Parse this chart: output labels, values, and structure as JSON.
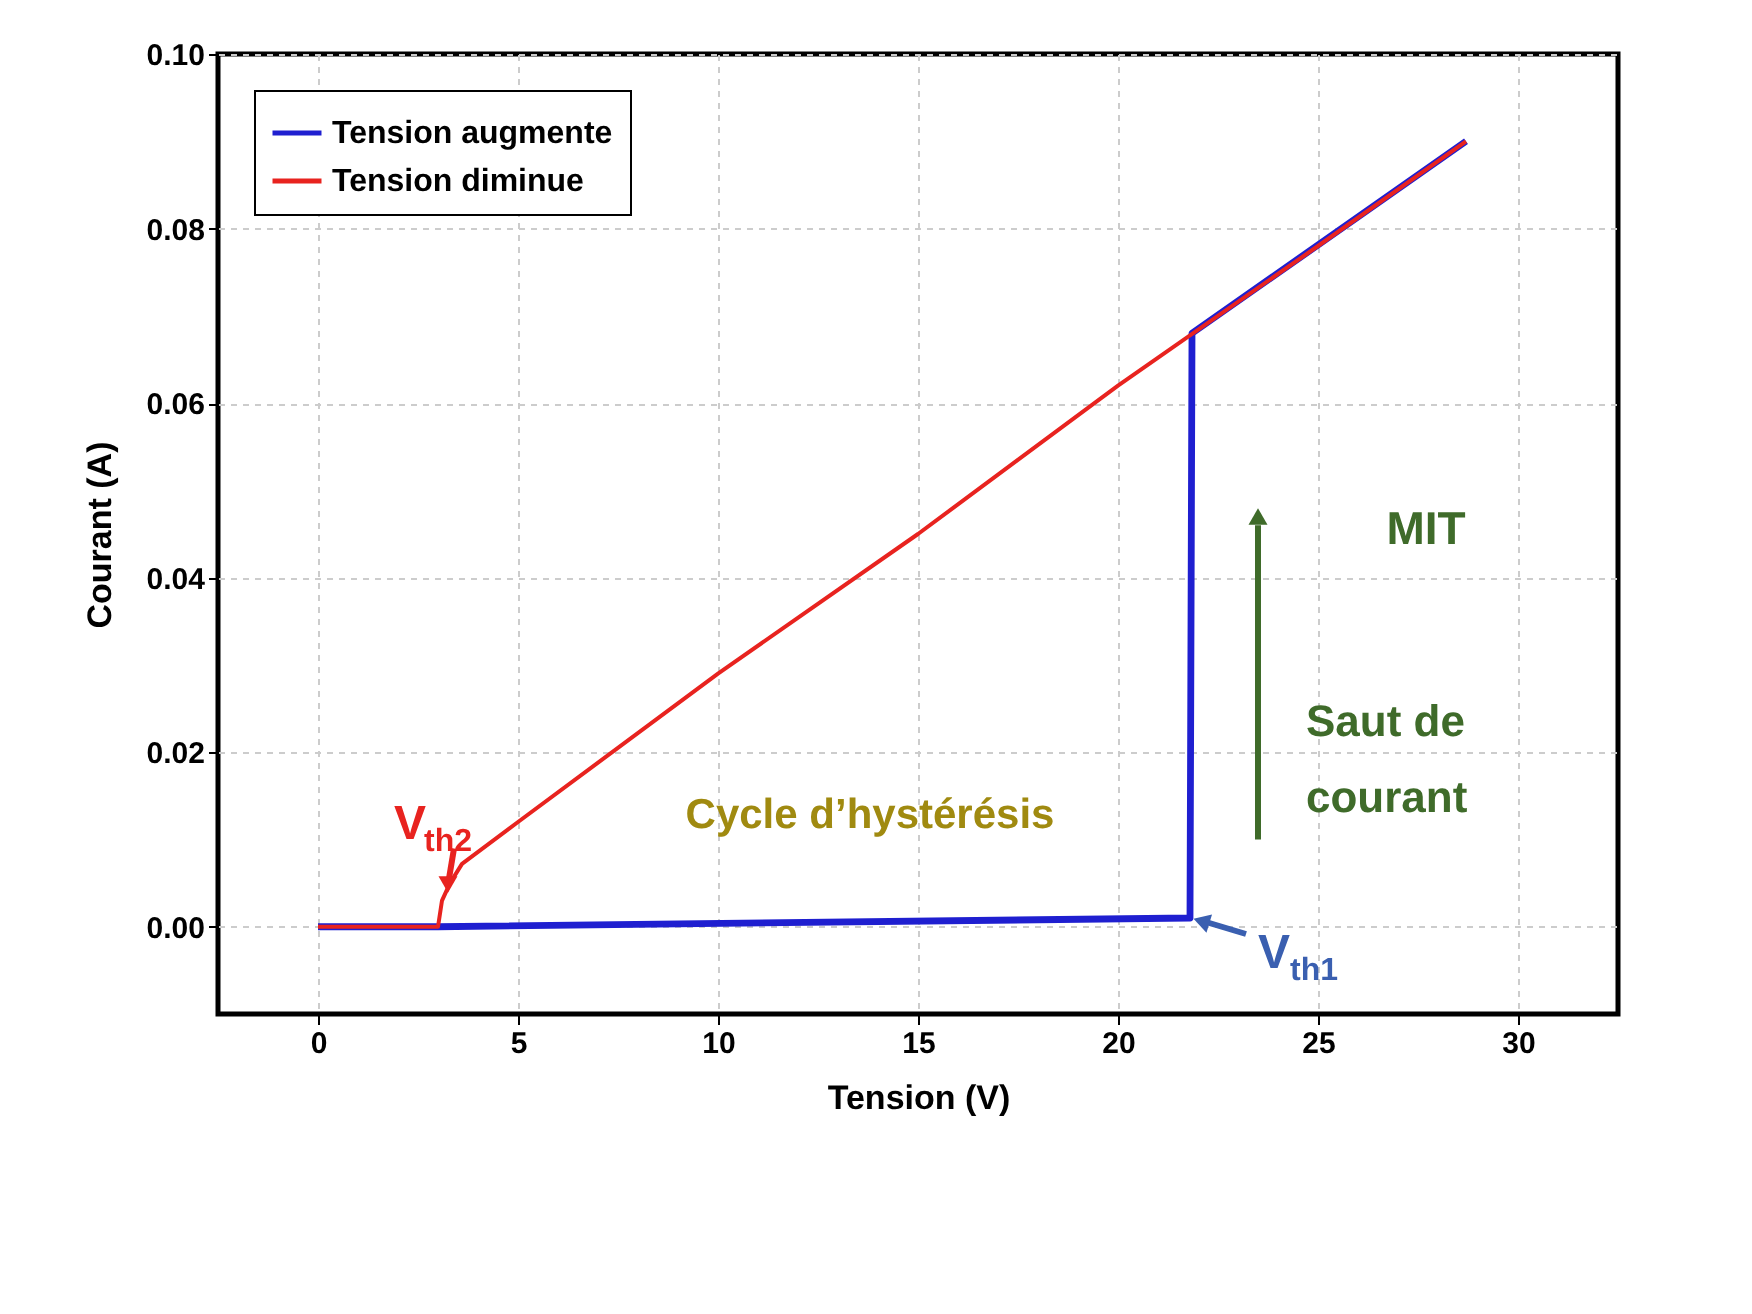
{
  "chart_data": {
    "type": "line",
    "xlabel": "Tension (V)",
    "ylabel": "Courant (A)",
    "xlim": [
      -2.5,
      32.5
    ],
    "ylim": [
      -0.01,
      0.1
    ],
    "xticks": [
      0,
      5,
      10,
      15,
      20,
      25,
      30
    ],
    "yticks": [
      {
        "value": 0,
        "label": "0.00"
      },
      {
        "value": 0.02,
        "label": "0.02"
      },
      {
        "value": 0.04,
        "label": "0.04"
      },
      {
        "value": 0.06,
        "label": "0.06"
      },
      {
        "value": 0.08,
        "label": "0.08"
      },
      {
        "value": 0.1,
        "label": "0.10"
      }
    ],
    "grid": true,
    "legend": "top left",
    "marker": "none",
    "line_style": "solid",
    "series": [
      {
        "name": "Tension augmente",
        "color": "#1f1fd0",
        "x": [
          0,
          3.0,
          21.8,
          21.85,
          28.7
        ],
        "values": [
          0,
          0,
          0.001,
          0.068,
          0.09
        ]
      },
      {
        "name": "Tension diminue",
        "color": "#e8231f",
        "x": [
          0,
          3.0,
          3.1,
          3.3,
          3.6,
          5,
          10,
          15,
          20,
          25,
          28.7
        ],
        "values": [
          0,
          0,
          0.003,
          0.005,
          0.0072,
          0.012,
          0.029,
          0.045,
          0.062,
          0.078,
          0.09
        ]
      }
    ],
    "annotations": [
      {
        "text": "V$_{th2}$",
        "x": 3.2,
        "y": 0.003
      },
      {
        "text": "V$_{th1}$",
        "x": 21.8,
        "y": 0.001
      },
      "Cycle d’hystérésis",
      "MIT",
      "Saut de courant"
    ]
  }
}
